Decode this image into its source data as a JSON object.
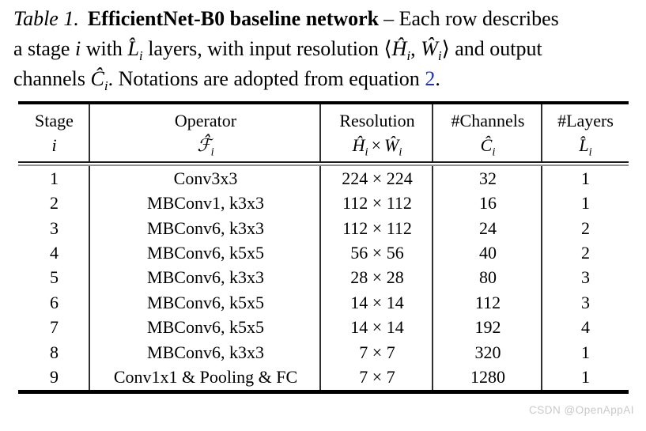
{
  "colors": {
    "background": "#ffffff",
    "text": "#000000",
    "link": "#2233bb",
    "watermark": "#c9c9c9"
  },
  "caption": {
    "label": "Table 1.",
    "title": "EfficientNet-B0 baseline network",
    "dash_rest": "– Each row describes",
    "line2": {
      "t1": "a stage ",
      "i1": "i",
      "t2": " with ",
      "L": "L̂",
      "Lsub": "i",
      "t3": " layers, with input resolution ",
      "open": "⟨",
      "H": "Ĥ",
      "Hsub": "i",
      "comma": ", ",
      "W": "Ŵ",
      "Wsub": "i",
      "close": "⟩",
      "t4": " and output"
    },
    "line3": {
      "t1": "channels ",
      "C": "Ĉ",
      "Csub": "i",
      "t2": ". Notations are adopted from equation ",
      "eq": "2",
      "t3": "."
    }
  },
  "table": {
    "header": {
      "stage": {
        "name": "Stage",
        "sym": "i"
      },
      "operator": {
        "name": "Operator",
        "sym": "ℱ̂",
        "sub": "i"
      },
      "resolution": {
        "name": "Resolution",
        "h": "Ĥ",
        "hsub": "i",
        "times": "×",
        "w": "Ŵ",
        "wsub": "i"
      },
      "channels": {
        "name": "#Channels",
        "sym": "Ĉ",
        "sub": "i"
      },
      "layers": {
        "name": "#Layers",
        "sym": "L̂",
        "sub": "i"
      }
    },
    "rows": [
      {
        "stage": "1",
        "operator": "Conv3x3",
        "resolution": "224 × 224",
        "channels": "32",
        "layers": "1"
      },
      {
        "stage": "2",
        "operator": "MBConv1, k3x3",
        "resolution": "112 × 112",
        "channels": "16",
        "layers": "1"
      },
      {
        "stage": "3",
        "operator": "MBConv6, k3x3",
        "resolution": "112 × 112",
        "channels": "24",
        "layers": "2"
      },
      {
        "stage": "4",
        "operator": "MBConv6, k5x5",
        "resolution": "56 × 56",
        "channels": "40",
        "layers": "2"
      },
      {
        "stage": "5",
        "operator": "MBConv6, k3x3",
        "resolution": "28 × 28",
        "channels": "80",
        "layers": "3"
      },
      {
        "stage": "6",
        "operator": "MBConv6, k5x5",
        "resolution": "14 × 14",
        "channels": "112",
        "layers": "3"
      },
      {
        "stage": "7",
        "operator": "MBConv6, k5x5",
        "resolution": "14 × 14",
        "channels": "192",
        "layers": "4"
      },
      {
        "stage": "8",
        "operator": "MBConv6, k3x3",
        "resolution": "7 × 7",
        "channels": "320",
        "layers": "1"
      },
      {
        "stage": "9",
        "operator": "Conv1x1 & Pooling & FC",
        "resolution": "7 × 7",
        "channels": "1280",
        "layers": "1"
      }
    ]
  },
  "watermark": {
    "text": "CSDN @OpenAppAI"
  }
}
